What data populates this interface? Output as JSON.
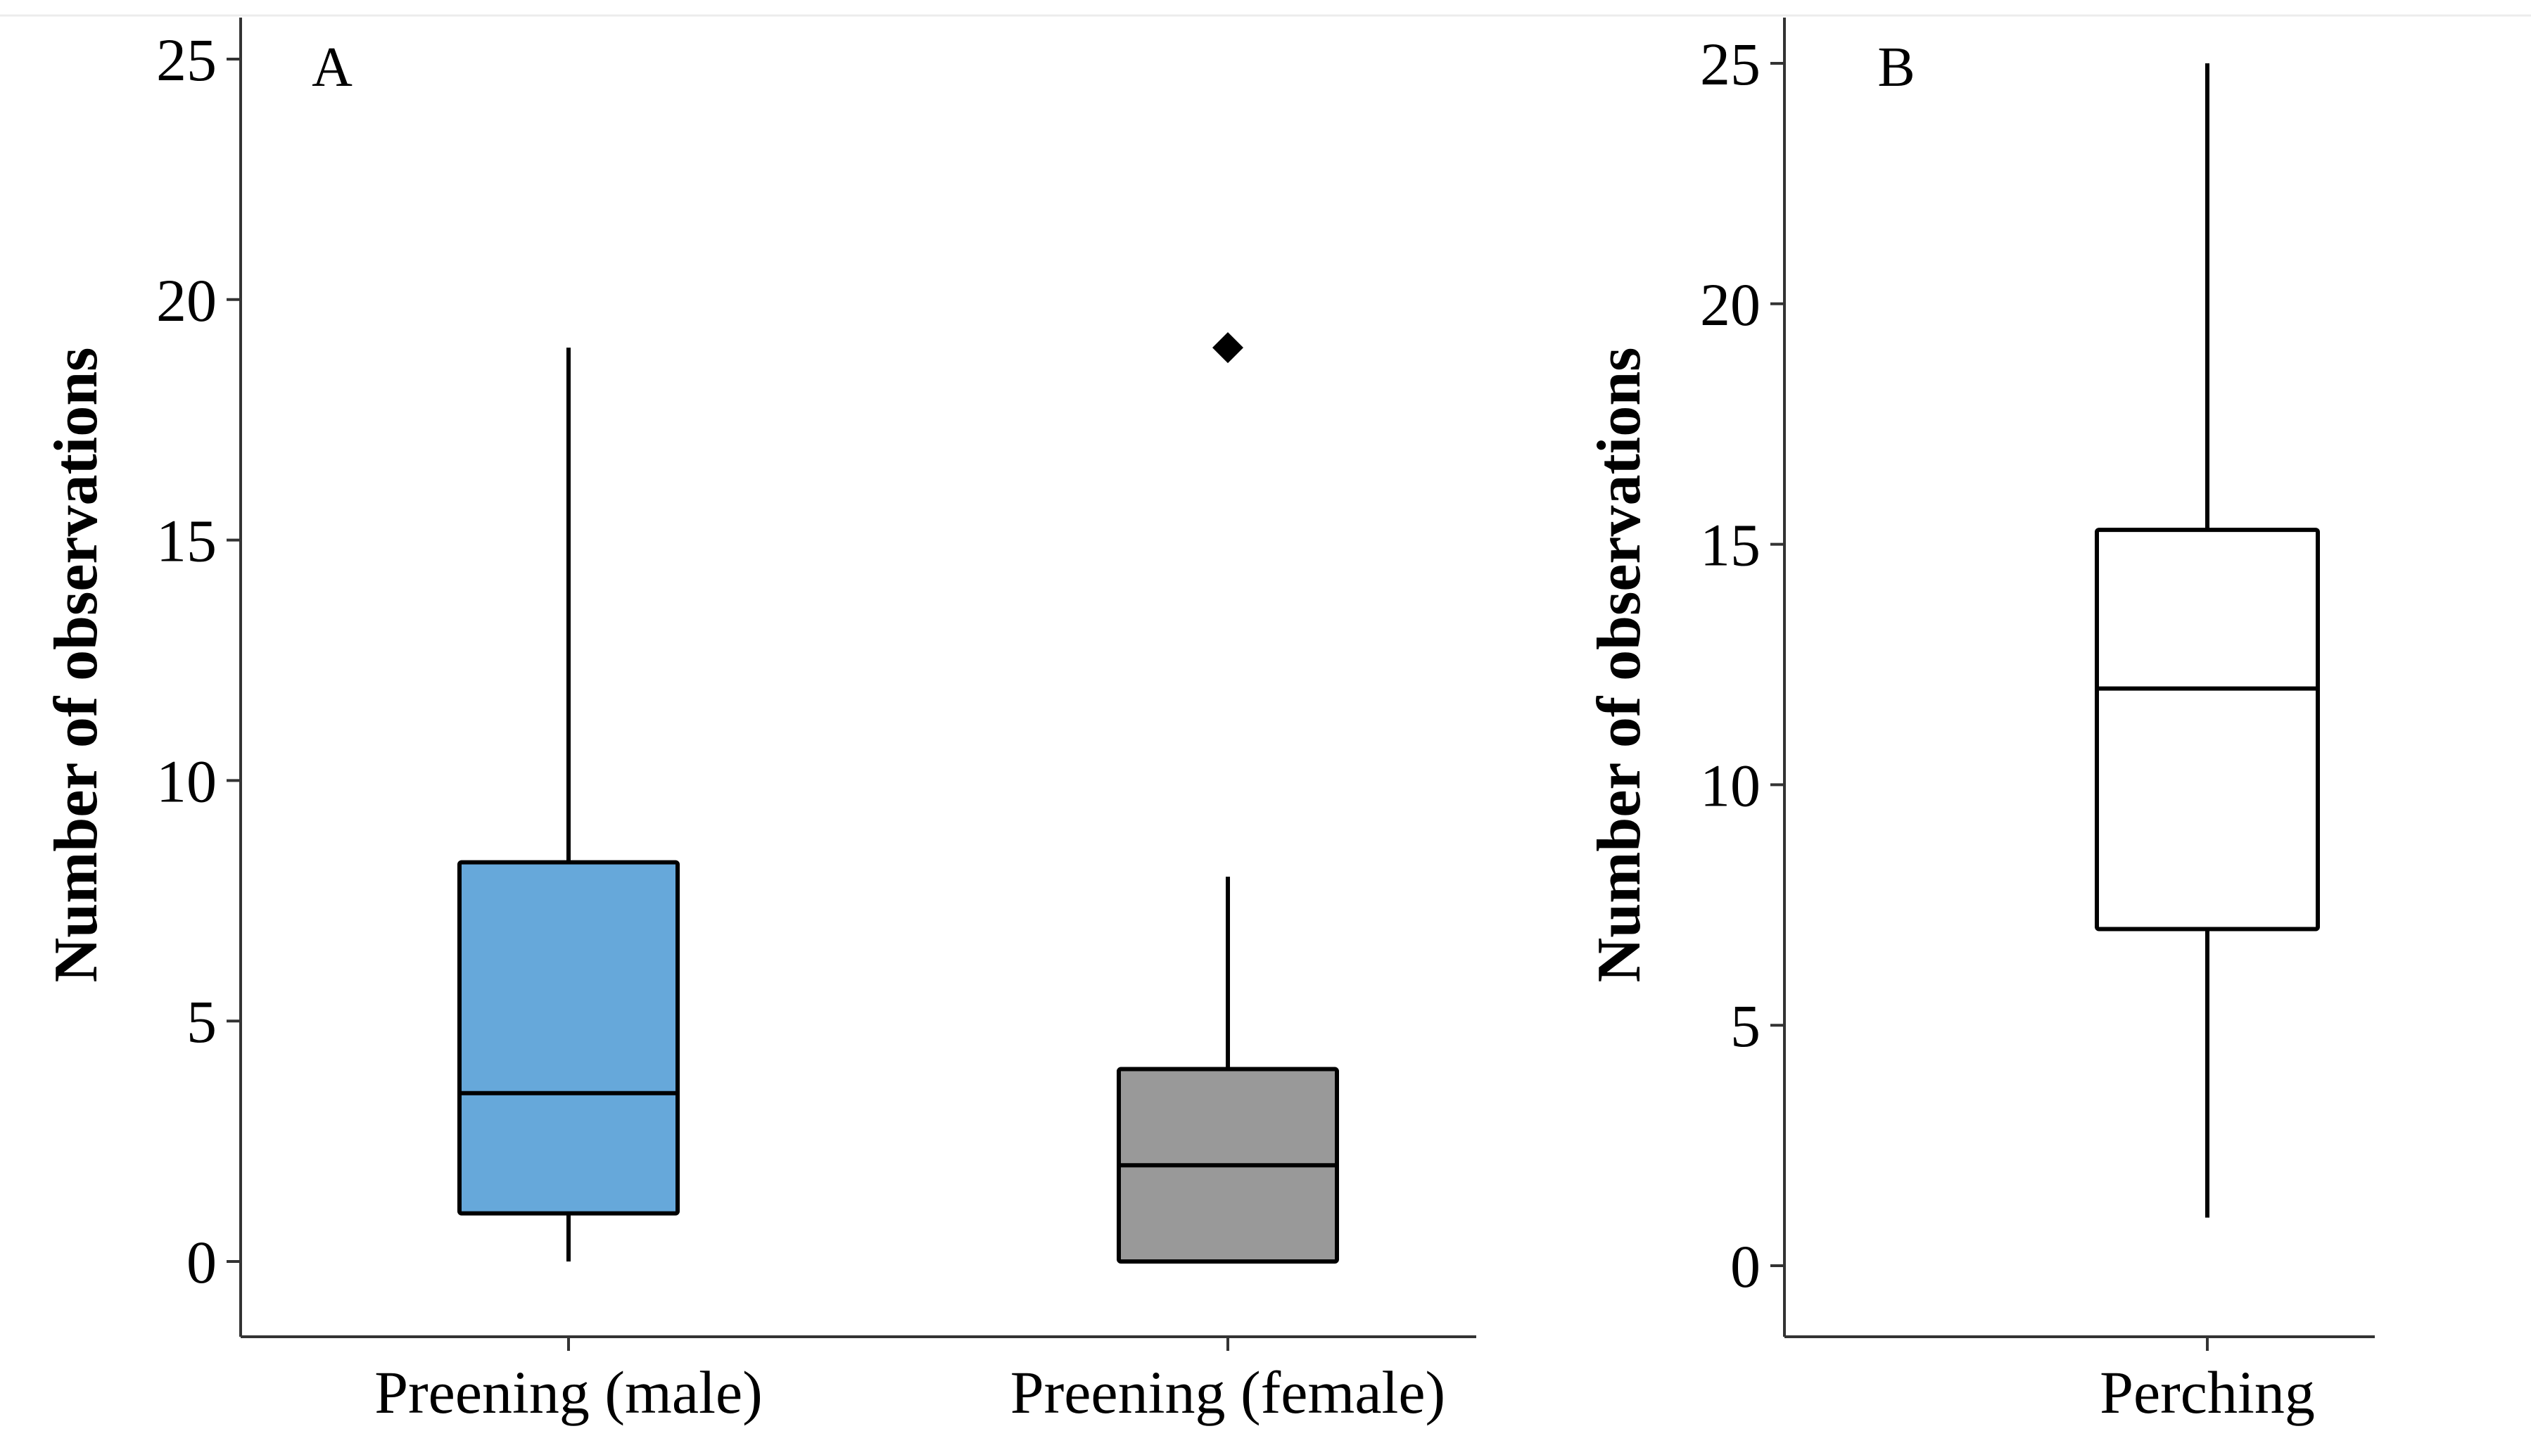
{
  "chart_data": [
    {
      "type": "box",
      "panel_label": "A",
      "title": "",
      "xlabel": "",
      "ylabel": "Number of observations",
      "ylim": [
        -1.5,
        26
      ],
      "yticks": [
        0,
        5,
        10,
        15,
        20,
        25
      ],
      "grid": false,
      "legend": "none",
      "categories": [
        "Preening (male)",
        "Preening (female)"
      ],
      "boxes": [
        {
          "category": "Preening (male)",
          "whisker_low": 0,
          "q1": 1,
          "median": 3.5,
          "q3": 8.3,
          "whisker_high": 19,
          "outliers": [],
          "color": "#66a8da"
        },
        {
          "category": "Preening (female)",
          "whisker_low": 0,
          "q1": 0,
          "median": 2,
          "q3": 4,
          "whisker_high": 8,
          "outliers": [
            19
          ],
          "color": "#999999"
        }
      ]
    },
    {
      "type": "box",
      "panel_label": "B",
      "title": "",
      "xlabel": "",
      "ylabel": "Number of observations",
      "ylim": [
        -1.5,
        26
      ],
      "yticks": [
        0,
        5,
        10,
        15,
        20,
        25
      ],
      "grid": false,
      "legend": "none",
      "categories": [
        "Perching"
      ],
      "boxes": [
        {
          "category": "Perching",
          "whisker_low": 1,
          "q1": 7,
          "median": 12,
          "q3": 15.3,
          "whisker_high": 25,
          "outliers": [],
          "color": "#ffffff"
        }
      ]
    }
  ]
}
